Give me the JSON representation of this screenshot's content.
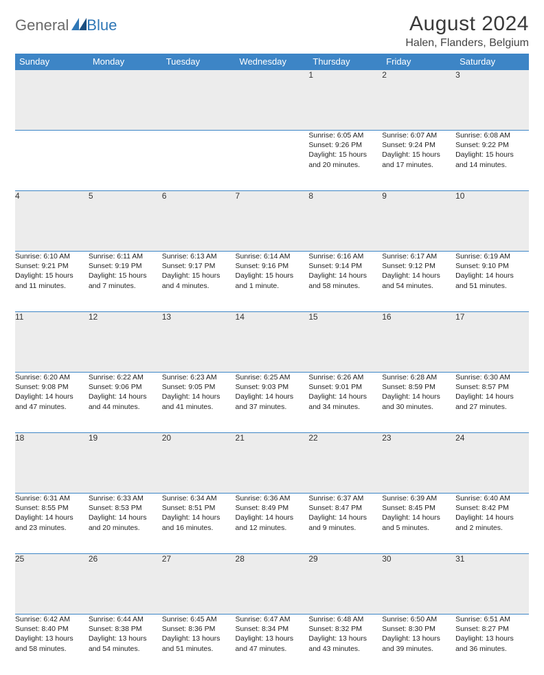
{
  "brand": {
    "general": "General",
    "blue": "Blue"
  },
  "header": {
    "month_title": "August 2024",
    "location": "Halen, Flanders, Belgium"
  },
  "colors": {
    "header_bg": "#3d85c6",
    "daynum_bg": "#ececec",
    "rule": "#3d85c6",
    "logo_gray": "#6a6a6a",
    "logo_blue": "#2f77b6"
  },
  "days_of_week": [
    "Sunday",
    "Monday",
    "Tuesday",
    "Wednesday",
    "Thursday",
    "Friday",
    "Saturday"
  ],
  "weeks": [
    [
      null,
      null,
      null,
      null,
      {
        "n": "1",
        "sunrise": "Sunrise: 6:05 AM",
        "sunset": "Sunset: 9:26 PM",
        "d1": "Daylight: 15 hours",
        "d2": "and 20 minutes."
      },
      {
        "n": "2",
        "sunrise": "Sunrise: 6:07 AM",
        "sunset": "Sunset: 9:24 PM",
        "d1": "Daylight: 15 hours",
        "d2": "and 17 minutes."
      },
      {
        "n": "3",
        "sunrise": "Sunrise: 6:08 AM",
        "sunset": "Sunset: 9:22 PM",
        "d1": "Daylight: 15 hours",
        "d2": "and 14 minutes."
      }
    ],
    [
      {
        "n": "4",
        "sunrise": "Sunrise: 6:10 AM",
        "sunset": "Sunset: 9:21 PM",
        "d1": "Daylight: 15 hours",
        "d2": "and 11 minutes."
      },
      {
        "n": "5",
        "sunrise": "Sunrise: 6:11 AM",
        "sunset": "Sunset: 9:19 PM",
        "d1": "Daylight: 15 hours",
        "d2": "and 7 minutes."
      },
      {
        "n": "6",
        "sunrise": "Sunrise: 6:13 AM",
        "sunset": "Sunset: 9:17 PM",
        "d1": "Daylight: 15 hours",
        "d2": "and 4 minutes."
      },
      {
        "n": "7",
        "sunrise": "Sunrise: 6:14 AM",
        "sunset": "Sunset: 9:16 PM",
        "d1": "Daylight: 15 hours",
        "d2": "and 1 minute."
      },
      {
        "n": "8",
        "sunrise": "Sunrise: 6:16 AM",
        "sunset": "Sunset: 9:14 PM",
        "d1": "Daylight: 14 hours",
        "d2": "and 58 minutes."
      },
      {
        "n": "9",
        "sunrise": "Sunrise: 6:17 AM",
        "sunset": "Sunset: 9:12 PM",
        "d1": "Daylight: 14 hours",
        "d2": "and 54 minutes."
      },
      {
        "n": "10",
        "sunrise": "Sunrise: 6:19 AM",
        "sunset": "Sunset: 9:10 PM",
        "d1": "Daylight: 14 hours",
        "d2": "and 51 minutes."
      }
    ],
    [
      {
        "n": "11",
        "sunrise": "Sunrise: 6:20 AM",
        "sunset": "Sunset: 9:08 PM",
        "d1": "Daylight: 14 hours",
        "d2": "and 47 minutes."
      },
      {
        "n": "12",
        "sunrise": "Sunrise: 6:22 AM",
        "sunset": "Sunset: 9:06 PM",
        "d1": "Daylight: 14 hours",
        "d2": "and 44 minutes."
      },
      {
        "n": "13",
        "sunrise": "Sunrise: 6:23 AM",
        "sunset": "Sunset: 9:05 PM",
        "d1": "Daylight: 14 hours",
        "d2": "and 41 minutes."
      },
      {
        "n": "14",
        "sunrise": "Sunrise: 6:25 AM",
        "sunset": "Sunset: 9:03 PM",
        "d1": "Daylight: 14 hours",
        "d2": "and 37 minutes."
      },
      {
        "n": "15",
        "sunrise": "Sunrise: 6:26 AM",
        "sunset": "Sunset: 9:01 PM",
        "d1": "Daylight: 14 hours",
        "d2": "and 34 minutes."
      },
      {
        "n": "16",
        "sunrise": "Sunrise: 6:28 AM",
        "sunset": "Sunset: 8:59 PM",
        "d1": "Daylight: 14 hours",
        "d2": "and 30 minutes."
      },
      {
        "n": "17",
        "sunrise": "Sunrise: 6:30 AM",
        "sunset": "Sunset: 8:57 PM",
        "d1": "Daylight: 14 hours",
        "d2": "and 27 minutes."
      }
    ],
    [
      {
        "n": "18",
        "sunrise": "Sunrise: 6:31 AM",
        "sunset": "Sunset: 8:55 PM",
        "d1": "Daylight: 14 hours",
        "d2": "and 23 minutes."
      },
      {
        "n": "19",
        "sunrise": "Sunrise: 6:33 AM",
        "sunset": "Sunset: 8:53 PM",
        "d1": "Daylight: 14 hours",
        "d2": "and 20 minutes."
      },
      {
        "n": "20",
        "sunrise": "Sunrise: 6:34 AM",
        "sunset": "Sunset: 8:51 PM",
        "d1": "Daylight: 14 hours",
        "d2": "and 16 minutes."
      },
      {
        "n": "21",
        "sunrise": "Sunrise: 6:36 AM",
        "sunset": "Sunset: 8:49 PM",
        "d1": "Daylight: 14 hours",
        "d2": "and 12 minutes."
      },
      {
        "n": "22",
        "sunrise": "Sunrise: 6:37 AM",
        "sunset": "Sunset: 8:47 PM",
        "d1": "Daylight: 14 hours",
        "d2": "and 9 minutes."
      },
      {
        "n": "23",
        "sunrise": "Sunrise: 6:39 AM",
        "sunset": "Sunset: 8:45 PM",
        "d1": "Daylight: 14 hours",
        "d2": "and 5 minutes."
      },
      {
        "n": "24",
        "sunrise": "Sunrise: 6:40 AM",
        "sunset": "Sunset: 8:42 PM",
        "d1": "Daylight: 14 hours",
        "d2": "and 2 minutes."
      }
    ],
    [
      {
        "n": "25",
        "sunrise": "Sunrise: 6:42 AM",
        "sunset": "Sunset: 8:40 PM",
        "d1": "Daylight: 13 hours",
        "d2": "and 58 minutes."
      },
      {
        "n": "26",
        "sunrise": "Sunrise: 6:44 AM",
        "sunset": "Sunset: 8:38 PM",
        "d1": "Daylight: 13 hours",
        "d2": "and 54 minutes."
      },
      {
        "n": "27",
        "sunrise": "Sunrise: 6:45 AM",
        "sunset": "Sunset: 8:36 PM",
        "d1": "Daylight: 13 hours",
        "d2": "and 51 minutes."
      },
      {
        "n": "28",
        "sunrise": "Sunrise: 6:47 AM",
        "sunset": "Sunset: 8:34 PM",
        "d1": "Daylight: 13 hours",
        "d2": "and 47 minutes."
      },
      {
        "n": "29",
        "sunrise": "Sunrise: 6:48 AM",
        "sunset": "Sunset: 8:32 PM",
        "d1": "Daylight: 13 hours",
        "d2": "and 43 minutes."
      },
      {
        "n": "30",
        "sunrise": "Sunrise: 6:50 AM",
        "sunset": "Sunset: 8:30 PM",
        "d1": "Daylight: 13 hours",
        "d2": "and 39 minutes."
      },
      {
        "n": "31",
        "sunrise": "Sunrise: 6:51 AM",
        "sunset": "Sunset: 8:27 PM",
        "d1": "Daylight: 13 hours",
        "d2": "and 36 minutes."
      }
    ]
  ]
}
